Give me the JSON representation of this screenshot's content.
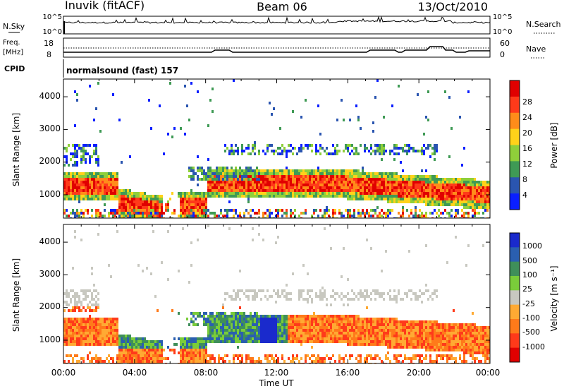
{
  "header": {
    "station": "Inuvik (fitACF)",
    "beam": "Beam 06",
    "date": "13/Oct/2010"
  },
  "top_panel": {
    "nsky_label": "N.Sky",
    "nsearch_label": "N.Search",
    "left_tick_top": "10^5",
    "left_tick_bottom": "10^0",
    "right_tick_top": "10^5",
    "right_tick_bottom": "10^0",
    "freq_label": "Freq.",
    "freq_unit": "[MHz]",
    "freq_ticks": [
      "18",
      "8"
    ],
    "nave_label": "Nave",
    "nave_ticks": [
      "60",
      "0"
    ],
    "cpid_label": "CPID",
    "cpid_value": "normalsound (fast) 157"
  },
  "chart_data": [
    {
      "type": "heatmap",
      "name": "power",
      "ylabel": "Slant Range [km]",
      "yticks": [
        "1000",
        "2000",
        "3000",
        "4000"
      ],
      "colorbar_label": "Power [dB]",
      "colorbar_ticks": [
        "4",
        "8",
        "12",
        "16",
        "20",
        "24",
        "28"
      ],
      "colorbar_colors": [
        "#0a1fff",
        "#2a55b0",
        "#3f9a55",
        "#8fcf3a",
        "#ffd21a",
        "#ff8c1a",
        "#ff3a1a",
        "#e00000"
      ]
    },
    {
      "type": "heatmap",
      "name": "velocity",
      "ylabel": "Slant Range [km]",
      "yticks": [
        "1000",
        "2000",
        "3000",
        "4000"
      ],
      "colorbar_label": "Velocity [m s⁻¹]",
      "colorbar_ticks": [
        "1000",
        "500",
        "100",
        "25",
        "-25",
        "-100",
        "-500",
        "-1000"
      ],
      "colorbar_colors": [
        "#1a2acc",
        "#2a5fb0",
        "#3f8f5a",
        "#7acc3a",
        "#c8c8c0",
        "#ffaa33",
        "#ff7a1a",
        "#ff3a1a",
        "#e00000"
      ]
    }
  ],
  "x_axis": {
    "ticks": [
      "00:00",
      "04:00",
      "08:00",
      "12:00",
      "16:00",
      "20:00",
      "00:00"
    ],
    "label": "Time UT"
  }
}
